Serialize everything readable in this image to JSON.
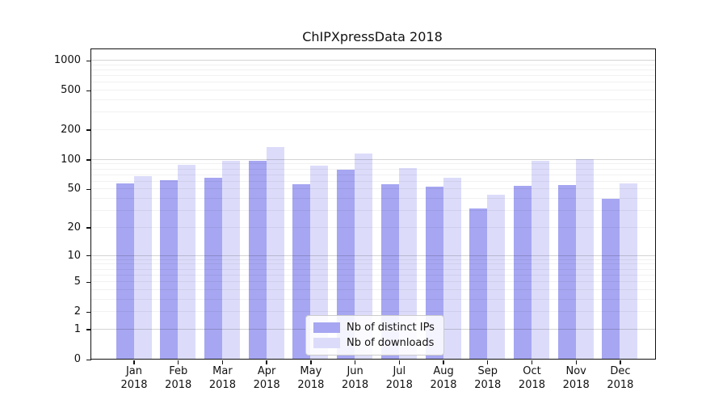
{
  "chart_data": {
    "type": "bar",
    "title": "ChIPXpressData 2018",
    "categories": [
      "Jan",
      "Feb",
      "Mar",
      "Apr",
      "May",
      "Jun",
      "Jul",
      "Aug",
      "Sep",
      "Oct",
      "Nov",
      "Dec"
    ],
    "xtick_second_line": "2018",
    "series": [
      {
        "name": "Nb of distinct IPs",
        "color": "#a6a6f2",
        "values": [
          57,
          61,
          65,
          96,
          56,
          78,
          56,
          52,
          31,
          53,
          54,
          39
        ]
      },
      {
        "name": "Nb of downloads",
        "color": "#dcdcfa",
        "values": [
          67,
          88,
          96,
          133,
          85,
          114,
          81,
          65,
          43,
          96,
          100,
          57
        ]
      }
    ],
    "yticks": [
      0,
      1,
      2,
      5,
      10,
      20,
      50,
      100,
      200,
      500,
      1000
    ],
    "scale": "log1p",
    "ylim": [
      0,
      1280
    ],
    "grid": true,
    "legend_position": "lower center"
  },
  "colors": {
    "background": "#ffffff",
    "axis": "#111111",
    "grid_major": "rgba(0,0,0,0.17)",
    "grid_minor": "rgba(0,0,0,0.055)",
    "legend_border": "#cccccc"
  }
}
